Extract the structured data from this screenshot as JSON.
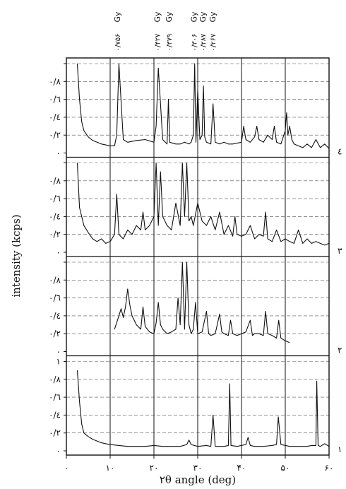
{
  "chart_data": {
    "type": "line",
    "title": "",
    "xlabel": "۲θ angle (deg)",
    "ylabel": "intensity (kcps)",
    "xlim": [
      0,
      60
    ],
    "x_tick_values": [
      0,
      10,
      20,
      30,
      40,
      50,
      60
    ],
    "x_tick_labels": [
      "۰",
      "۱۰",
      "۲۰",
      "۳۰",
      "۴۰",
      "۵۰",
      "۶۰"
    ],
    "ylim": [
      0,
      1
    ],
    "y_tick_values": [
      0,
      0.2,
      0.4,
      0.6,
      0.8,
      1
    ],
    "y_tick_labels": [
      "۰",
      "۰/۲",
      "۰/٤",
      "۰/٦",
      "۰/۸",
      "۱"
    ],
    "grid": true,
    "vertical_reference_lines": [
      10,
      20,
      30,
      40,
      50
    ],
    "series": [
      {
        "name": "۱",
        "x": [
          2.5,
          3,
          3.5,
          4,
          5,
          6,
          7,
          8,
          9,
          10,
          12,
          14,
          16,
          18,
          20,
          22,
          24,
          26,
          27.5,
          28,
          28.5,
          30,
          32,
          33,
          33.5,
          34,
          35,
          36,
          37,
          37.3,
          37.6,
          39,
          41,
          41.5,
          42,
          43,
          45,
          47,
          48,
          48.4,
          49,
          51,
          53,
          55,
          56,
          57,
          57.2,
          57.5,
          58,
          59,
          60
        ],
        "y": [
          0.9,
          0.55,
          0.3,
          0.2,
          0.16,
          0.13,
          0.11,
          0.09,
          0.08,
          0.07,
          0.06,
          0.05,
          0.05,
          0.05,
          0.06,
          0.05,
          0.05,
          0.05,
          0.07,
          0.12,
          0.07,
          0.05,
          0.06,
          0.05,
          0.4,
          0.05,
          0.05,
          0.05,
          0.06,
          0.75,
          0.06,
          0.05,
          0.07,
          0.15,
          0.06,
          0.05,
          0.05,
          0.06,
          0.07,
          0.38,
          0.07,
          0.05,
          0.05,
          0.05,
          0.06,
          0.06,
          0.78,
          0.06,
          0.05,
          0.08,
          0.05
        ]
      },
      {
        "name": "۲",
        "x": [
          11,
          12,
          12.5,
          13,
          13.5,
          14,
          14.5,
          15,
          15.5,
          16,
          17,
          17.5,
          18,
          19,
          20,
          20.5,
          21,
          21.5,
          22,
          23,
          24,
          25,
          25.5,
          26,
          26.5,
          27,
          27.5,
          28,
          28.5,
          29,
          29.5,
          30,
          31,
          32,
          32.5,
          33,
          34,
          35,
          35.5,
          36,
          37,
          37.5,
          38,
          39,
          40,
          41,
          42,
          42.5,
          43,
          44,
          45,
          45.5,
          46,
          47,
          48,
          48.5,
          49,
          50,
          51
        ],
        "y": [
          0.25,
          0.4,
          0.48,
          0.38,
          0.5,
          0.7,
          0.52,
          0.4,
          0.35,
          0.3,
          0.25,
          0.5,
          0.28,
          0.22,
          0.2,
          0.32,
          0.55,
          0.3,
          0.25,
          0.2,
          0.22,
          0.25,
          0.6,
          0.3,
          1,
          0.25,
          1,
          0.3,
          0.2,
          0.25,
          0.55,
          0.2,
          0.22,
          0.45,
          0.2,
          0.18,
          0.2,
          0.42,
          0.22,
          0.2,
          0.18,
          0.35,
          0.2,
          0.18,
          0.2,
          0.22,
          0.35,
          0.18,
          0.2,
          0.2,
          0.18,
          0.45,
          0.2,
          0.18,
          0.15,
          0.35,
          0.15,
          0.12,
          0.1
        ]
      },
      {
        "name": "۳",
        "x": [
          2.5,
          3,
          4,
          5,
          6,
          7,
          8,
          9,
          10,
          11,
          11.5,
          12,
          13,
          14,
          15,
          16,
          17,
          17.5,
          18,
          19,
          20,
          20.5,
          21,
          21.5,
          22,
          23,
          24,
          25,
          26,
          26.5,
          27,
          27.5,
          28,
          28.5,
          29,
          30,
          31,
          32,
          33,
          34,
          35,
          36,
          37,
          38,
          38.5,
          39,
          40,
          41,
          42,
          43,
          44,
          45,
          45.5,
          46,
          47,
          48,
          49,
          50,
          51,
          52,
          53,
          54,
          55,
          56,
          57,
          58,
          59,
          60
        ],
        "y": [
          1,
          0.5,
          0.3,
          0.22,
          0.15,
          0.12,
          0.15,
          0.1,
          0.12,
          0.2,
          0.65,
          0.2,
          0.15,
          0.25,
          0.2,
          0.3,
          0.25,
          0.45,
          0.25,
          0.3,
          0.4,
          1,
          0.3,
          0.9,
          0.4,
          0.3,
          0.25,
          0.55,
          0.3,
          1,
          0.4,
          1,
          0.35,
          0.4,
          0.3,
          0.55,
          0.35,
          0.3,
          0.4,
          0.25,
          0.45,
          0.2,
          0.3,
          0.18,
          0.4,
          0.2,
          0.18,
          0.2,
          0.3,
          0.15,
          0.2,
          0.18,
          0.45,
          0.15,
          0.12,
          0.25,
          0.12,
          0.15,
          0.12,
          0.1,
          0.25,
          0.1,
          0.15,
          0.1,
          0.12,
          0.1,
          0.08,
          0.1
        ]
      },
      {
        "name": "٤",
        "x": [
          2.5,
          3,
          3.5,
          4,
          5,
          6,
          7,
          8,
          9,
          10,
          11,
          11.5,
          12,
          13,
          14,
          16,
          18,
          20,
          20.5,
          21,
          22,
          23,
          23.3,
          23.6,
          25,
          26,
          27,
          28,
          28.5,
          29,
          29.3,
          29.6,
          30,
          30.5,
          31,
          31.3,
          31.6,
          32,
          33,
          33.5,
          34,
          35,
          36,
          37,
          38,
          40,
          40.5,
          41,
          42,
          43,
          43.5,
          44,
          45,
          46,
          47,
          47.5,
          48,
          49,
          50,
          50.3,
          50.6,
          51,
          51.5,
          52,
          53,
          54,
          55,
          56,
          57,
          58,
          59,
          60
        ],
        "y": [
          1,
          0.6,
          0.35,
          0.25,
          0.18,
          0.14,
          0.12,
          0.1,
          0.09,
          0.08,
          0.08,
          0.2,
          1,
          0.15,
          0.12,
          0.14,
          0.15,
          0.12,
          0.3,
          0.95,
          0.15,
          0.1,
          0.6,
          0.12,
          0.1,
          0.1,
          0.12,
          0.1,
          0.12,
          0.2,
          1,
          0.12,
          0.7,
          0.15,
          0.2,
          0.75,
          0.18,
          0.12,
          0.1,
          0.55,
          0.12,
          0.1,
          0.12,
          0.1,
          0.1,
          0.12,
          0.3,
          0.15,
          0.12,
          0.18,
          0.3,
          0.15,
          0.12,
          0.2,
          0.15,
          0.3,
          0.12,
          0.1,
          0.25,
          0.45,
          0.2,
          0.3,
          0.15,
          0.1,
          0.08,
          0.06,
          0.1,
          0.06,
          0.15,
          0.06,
          0.1,
          0.05
        ]
      }
    ],
    "peak_annotations": [
      {
        "x": 11.6,
        "label": "۰/۷۵۶",
        "phase": "Gy"
      },
      {
        "x": 20.7,
        "label": "۰/۴۲۷",
        "phase": "Gy"
      },
      {
        "x": 23.4,
        "label": "۰/۳۷۹",
        "phase": "Gy"
      },
      {
        "x": 29.1,
        "label": "۰/۳۰۶",
        "phase": "Gy"
      },
      {
        "x": 31.1,
        "label": "۰/۲۸۷",
        "phase": "Gy"
      },
      {
        "x": 33.4,
        "label": "۰/۲۶۷",
        "phase": "Gy"
      }
    ]
  }
}
